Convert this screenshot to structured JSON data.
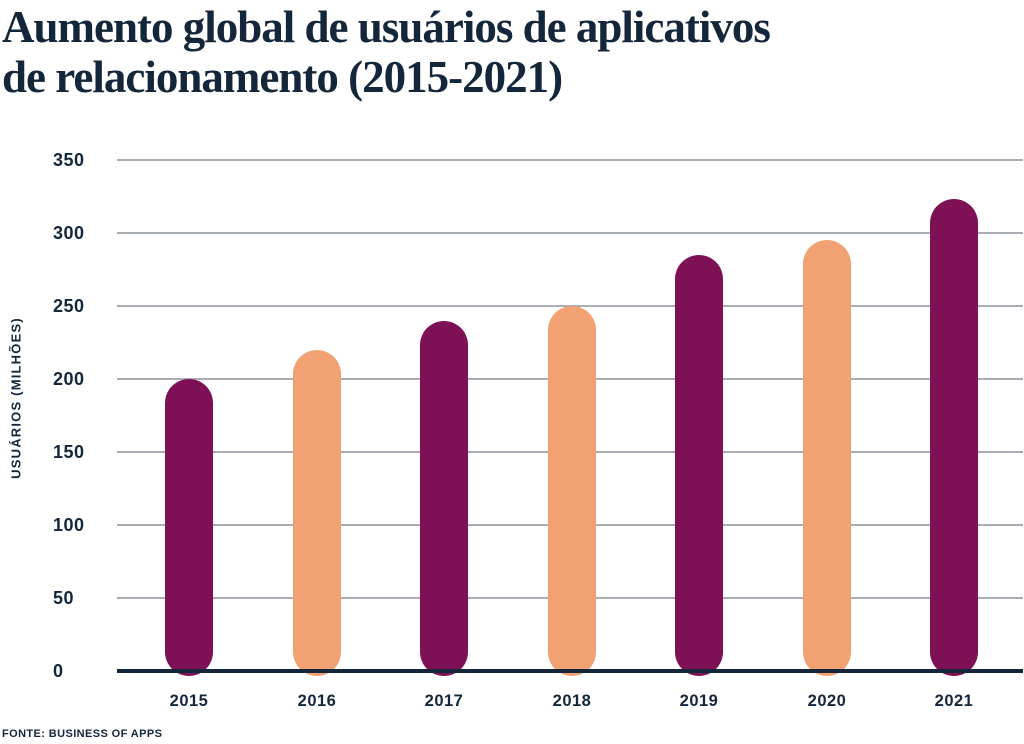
{
  "title": {
    "line1": "Aumento global de usuários de aplicativos",
    "line2": "de relacionamento (2015-2021)"
  },
  "source_label": "FONTE: BUSINESS OF APPS",
  "colors": {
    "ink_navy": "#13263A",
    "bar_magenta": "#7E1156",
    "bar_peach": "#F2A172",
    "gridline_gray": "#A9AEB4",
    "background": "#FFFFFF"
  },
  "chart_data": {
    "type": "bar",
    "title": "Aumento global de usuários de aplicativos de relacionamento (2015-2021)",
    "categories": [
      "2015",
      "2016",
      "2017",
      "2018",
      "2019",
      "2020",
      "2021"
    ],
    "values": [
      200,
      220,
      240,
      250,
      285,
      295,
      323
    ],
    "bar_colors": [
      "#7E1156",
      "#F2A172",
      "#7E1156",
      "#F2A172",
      "#7E1156",
      "#F2A172",
      "#7E1156"
    ],
    "xlabel": "",
    "ylabel": "USUÁRIOS (MILHÕES)",
    "ylim": [
      0,
      350
    ],
    "yticks": [
      0,
      50,
      100,
      150,
      200,
      250,
      300,
      350
    ],
    "grid": true,
    "legend_position": "none",
    "source": "FONTE: BUSINESS OF APPS"
  }
}
